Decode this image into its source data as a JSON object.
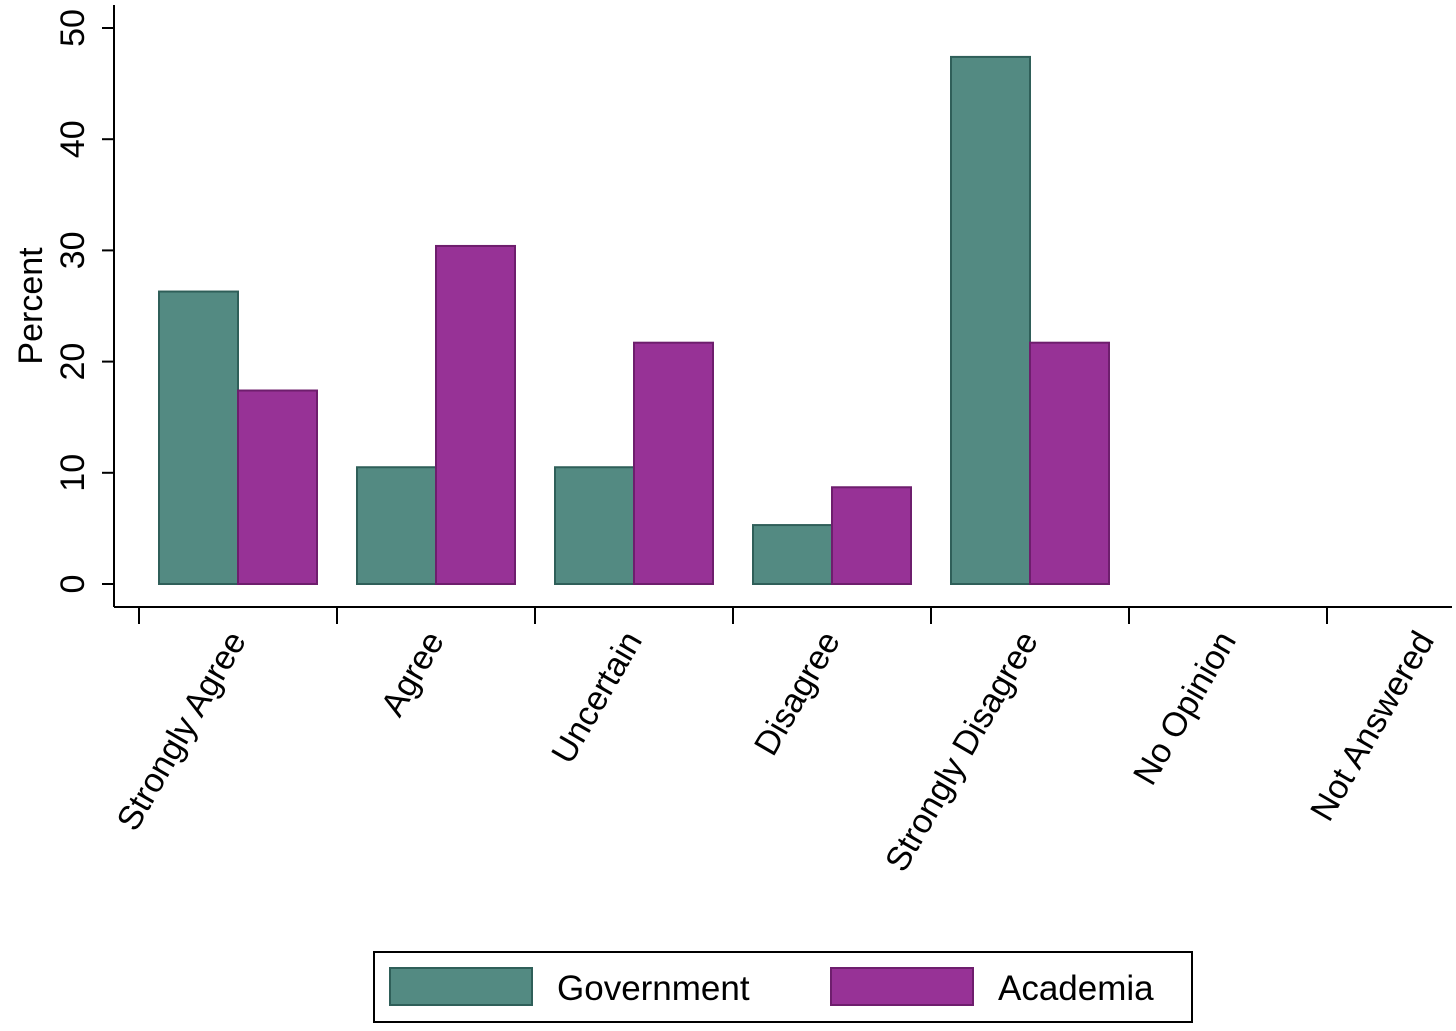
{
  "chart_data": {
    "type": "bar",
    "title": "",
    "xlabel": "",
    "ylabel": "Percent",
    "ylim": [
      0,
      50
    ],
    "yticks": [
      0,
      10,
      20,
      30,
      40,
      50
    ],
    "categories": [
      "Strongly Agree",
      "Agree",
      "Uncertain",
      "Disagree",
      "Strongly Disagree",
      "No Opinion",
      "Not Answered"
    ],
    "series": [
      {
        "name": "Government",
        "color": "#538a82",
        "edge": "#2f5f59",
        "values": [
          26.3,
          10.5,
          10.5,
          5.3,
          47.4,
          0,
          0
        ]
      },
      {
        "name": "Academia",
        "color": "#973296",
        "edge": "#6e1e6d",
        "values": [
          17.4,
          30.4,
          21.7,
          8.7,
          21.7,
          0,
          0
        ]
      }
    ],
    "grid": false,
    "legend_position": "bottom-center"
  }
}
